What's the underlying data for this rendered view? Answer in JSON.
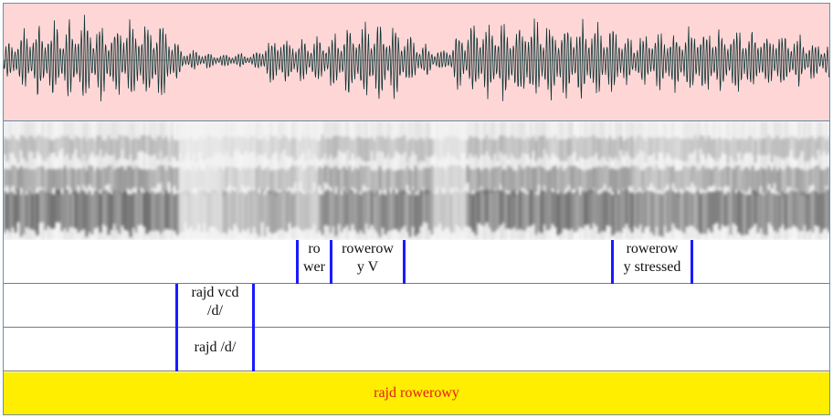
{
  "colors": {
    "waveform_bg": "#ffd6d6",
    "waveform_stroke": "#0f3535",
    "boundary": "#1a1aff",
    "sentence_bg": "#ffee00",
    "sentence_text": "#e01b1b"
  },
  "tiers": [
    {
      "labels": [
        {
          "id": "ro-wer",
          "text": "ro\nwer"
        },
        {
          "id": "rowerow-y-v",
          "text": "rowerow\ny V"
        },
        {
          "id": "rowerow-y-stressed",
          "text": "rowerow\ny stressed"
        }
      ]
    },
    {
      "labels": [
        {
          "id": "rajd-vcd",
          "text": "rajd vcd\n /d/"
        }
      ]
    },
    {
      "labels": [
        {
          "id": "rajd-d",
          "text": "rajd /d/"
        }
      ]
    }
  ],
  "sentence": "rajd rowerowy"
}
